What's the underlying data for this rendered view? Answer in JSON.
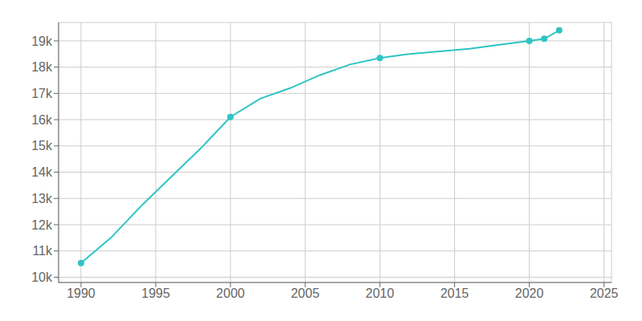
{
  "chart_data": {
    "type": "line",
    "x": [
      1990,
      1992,
      1994,
      1996,
      1998,
      2000,
      2002,
      2004,
      2006,
      2008,
      2010,
      2012,
      2014,
      2016,
      2018,
      2020,
      2021,
      2022
    ],
    "series": [
      {
        "type": "line",
        "color": "#2EC4C4",
        "values": [
          10542,
          11500,
          12700,
          13800,
          14900,
          16103,
          16800,
          17200,
          17700,
          18100,
          18351,
          18500,
          18600,
          18700,
          18850,
          19000,
          19080,
          19400
        ]
      },
      {
        "type": "scatter",
        "marker": "circle",
        "color": "#2EC4C4",
        "values": [
          10542,
          null,
          null,
          null,
          null,
          16103,
          null,
          null,
          null,
          null,
          18351,
          null,
          null,
          null,
          null,
          19000,
          19080,
          19400
        ]
      }
    ],
    "xlim": [
      1988.5,
      2025.5
    ],
    "xticks": [
      1990,
      1995,
      2000,
      2005,
      2010,
      2015,
      2020,
      2025
    ],
    "ylim": [
      9800,
      19700
    ],
    "yticks": [
      {
        "value": 10000,
        "label": "10k"
      },
      {
        "value": 11000,
        "label": "11k"
      },
      {
        "value": 12000,
        "label": "12k"
      },
      {
        "value": 13000,
        "label": "13k"
      },
      {
        "value": 14000,
        "label": "14k"
      },
      {
        "value": 15000,
        "label": "15k"
      },
      {
        "value": 16000,
        "label": "16k"
      },
      {
        "value": 17000,
        "label": "17k"
      },
      {
        "value": 18000,
        "label": "18k"
      },
      {
        "value": 19000,
        "label": "19k"
      }
    ],
    "grid": true
  }
}
